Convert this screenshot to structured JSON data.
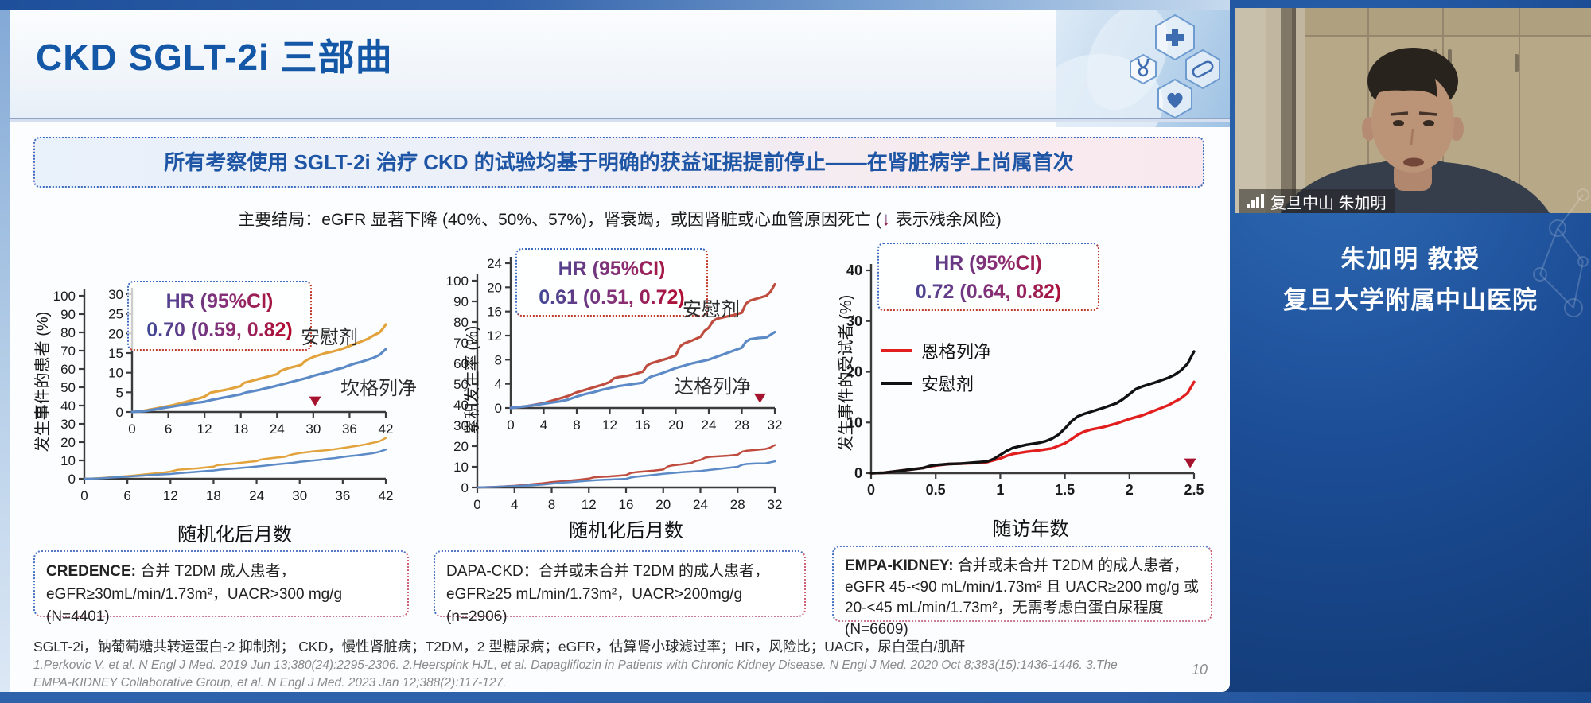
{
  "slide": {
    "title": "CKD SGLT-2i 三部曲",
    "banner": "所有考察使用 SGLT-2i 治疗 CKD 的试验均基于明确的获益证据提前停止——在肾脏病学上尚属首次",
    "subtitle_prefix": "主要结局：eGFR 显著下降 (40%、50%、57%)，肾衰竭，或因肾脏或心血管原因死亡 (",
    "subtitle_arrow": "↓",
    "subtitle_suffix": " 表示残余风险)",
    "footnote_abbrev": "SGLT-2i，钠葡萄糖共转运蛋白-2 抑制剂； CKD，慢性肾脏病；T2DM，2 型糖尿病；eGFR，估算肾小球滤过率；HR，风险比；UACR，尿白蛋白/肌酐",
    "references": "1.Perkovic V, et al. N Engl J Med. 2019 Jun 13;380(24):2295-2306. 2.Heerspink HJL, et al. Dapagliflozin in Patients with Chronic Kidney Disease. N Engl J Med. 2020 Oct 8;383(15):1436-1446. 3.The EMPA-KIDNEY Collaborative Group, et al. N Engl J Med. 2023 Jan 12;388(2):117-127.",
    "page_number": "10"
  },
  "trial_boxes": [
    {
      "title": "CREDENCE:",
      "text": " 合并 T2DM 成人患者，eGFR≥30mL/min/1.73m²，UACR>300 mg/g (N=4401)"
    },
    {
      "title": "DAPA-CKD：",
      "text": "合并或未合并 T2DM 的成人患者，eGFR≥25 mL/min/1.73m²，UACR>200mg/g (n=2906)"
    },
    {
      "title": "EMPA-KIDNEY:",
      "text": " 合并或未合并 T2DM 的成人患者，eGFR 45-<90 mL/min/1.73m² 且 UACR≥200 mg/g 或 20-<45 mL/min/1.73m²，无需考虑白蛋白尿程度 (N=6609)"
    }
  ],
  "speaker": {
    "video_label": "复旦中山 朱加明",
    "name_line": "朱加明 教授",
    "hospital_line": "复旦大学附属中山医院"
  },
  "chart_data": [
    {
      "type": "line",
      "trial": "CREDENCE",
      "xlabel": "随机化后月数",
      "ylabel": "发生事件的患者 (%)",
      "hr_label": "HR (95%CI)",
      "hr_value": "0.70 (0.59, 0.82)",
      "axes": [
        {
          "xlim": [
            0,
            42
          ],
          "ylim": [
            0,
            100
          ],
          "xticks": [
            0,
            6,
            12,
            18,
            24,
            30,
            36,
            42
          ],
          "yticks": [
            0,
            10,
            20,
            30,
            40,
            50,
            60,
            70,
            80,
            90,
            100
          ]
        },
        {
          "xlim": [
            0,
            42
          ],
          "ylim": [
            0,
            30
          ],
          "xticks": [
            0,
            6,
            12,
            18,
            24,
            30,
            36,
            42
          ],
          "yticks": [
            0,
            5,
            10,
            15,
            20,
            25,
            30
          ],
          "arrow": {
            "x": 30.3,
            "y1": 9.2,
            "y2": 1.5
          }
        }
      ],
      "series": [
        {
          "name": "安慰剂",
          "color": "#E2A33C",
          "points": [
            [
              0,
              0
            ],
            [
              1,
              0.1
            ],
            [
              2,
              0.3
            ],
            [
              3,
              0.6
            ],
            [
              4,
              0.9
            ],
            [
              5,
              1.2
            ],
            [
              6,
              1.5
            ],
            [
              7,
              1.8
            ],
            [
              8,
              2.2
            ],
            [
              9,
              2.6
            ],
            [
              10,
              3.0
            ],
            [
              11,
              3.4
            ],
            [
              12,
              3.9
            ],
            [
              13,
              4.9
            ],
            [
              14,
              5.2
            ],
            [
              15,
              5.5
            ],
            [
              16,
              5.8
            ],
            [
              17,
              6.2
            ],
            [
              18,
              6.6
            ],
            [
              18.5,
              7.4
            ],
            [
              19,
              7.6
            ],
            [
              20,
              8.0
            ],
            [
              21,
              8.4
            ],
            [
              22,
              8.8
            ],
            [
              23,
              9.2
            ],
            [
              24,
              9.6
            ],
            [
              24.5,
              10.4
            ],
            [
              25,
              10.7
            ],
            [
              26,
              11.2
            ],
            [
              27,
              11.6
            ],
            [
              28,
              12.0
            ],
            [
              28.5,
              12.8
            ],
            [
              29,
              13.3
            ],
            [
              30,
              14.0
            ],
            [
              31,
              14.5
            ],
            [
              32,
              15.0
            ],
            [
              33,
              15.3
            ],
            [
              34,
              15.7
            ],
            [
              35,
              16.2
            ],
            [
              36,
              16.8
            ],
            [
              37,
              17.4
            ],
            [
              38,
              18.0
            ],
            [
              39,
              18.6
            ],
            [
              40,
              19.5
            ],
            [
              41,
              20.3
            ],
            [
              41.5,
              21.2
            ],
            [
              42,
              22.3
            ]
          ]
        },
        {
          "name": "坎格列净",
          "color": "#5B8AC6",
          "points": [
            [
              0,
              0
            ],
            [
              2,
              0.2
            ],
            [
              4,
              0.7
            ],
            [
              6,
              1.2
            ],
            [
              8,
              1.7
            ],
            [
              10,
              2.2
            ],
            [
              12,
              2.6
            ],
            [
              13,
              3.0
            ],
            [
              14,
              3.3
            ],
            [
              15,
              3.6
            ],
            [
              16,
              3.9
            ],
            [
              17,
              4.2
            ],
            [
              18,
              4.5
            ],
            [
              19,
              5.0
            ],
            [
              20,
              5.3
            ],
            [
              21,
              5.6
            ],
            [
              22,
              6.0
            ],
            [
              23,
              6.3
            ],
            [
              24,
              6.7
            ],
            [
              25,
              7.1
            ],
            [
              26,
              7.5
            ],
            [
              27,
              7.9
            ],
            [
              28,
              8.3
            ],
            [
              29,
              8.7
            ],
            [
              30,
              9.2
            ],
            [
              31,
              9.6
            ],
            [
              32,
              10.0
            ],
            [
              33,
              10.4
            ],
            [
              34,
              10.9
            ],
            [
              35,
              11.3
            ],
            [
              36,
              11.9
            ],
            [
              37,
              12.4
            ],
            [
              38,
              12.8
            ],
            [
              39,
              13.3
            ],
            [
              40,
              13.8
            ],
            [
              41,
              14.6
            ],
            [
              42,
              16.0
            ]
          ]
        }
      ]
    },
    {
      "type": "line",
      "trial": "DAPA-CKD",
      "xlabel": "随机化后月数",
      "ylabel": "累积发生率 (%)",
      "hr_label": "HR (95%CI)",
      "hr_value": "0.61 (0.51, 0.72)",
      "axes": [
        {
          "xlim": [
            0,
            32
          ],
          "ylim": [
            0,
            100
          ],
          "xticks": [
            0,
            4,
            8,
            12,
            16,
            20,
            24,
            28,
            32
          ],
          "yticks": [
            0,
            10,
            20,
            30,
            40,
            50,
            60,
            70,
            80,
            90,
            100
          ]
        },
        {
          "xlim": [
            0,
            32
          ],
          "ylim": [
            0,
            24
          ],
          "xticks": [
            0,
            4,
            8,
            12,
            16,
            20,
            24,
            28,
            32
          ],
          "yticks": [
            0,
            4,
            8,
            12,
            16,
            20,
            24
          ],
          "arrow": {
            "x": 30.2,
            "y1": 11.4,
            "y2": 0.8
          }
        }
      ],
      "series": [
        {
          "name": "安慰剂",
          "color": "#BF4D3F",
          "points": [
            [
              0,
              0
            ],
            [
              2,
              0.3
            ],
            [
              4,
              0.8
            ],
            [
              5,
              1.2
            ],
            [
              6,
              1.6
            ],
            [
              7,
              2.0
            ],
            [
              8,
              2.6
            ],
            [
              9,
              3.0
            ],
            [
              10,
              3.4
            ],
            [
              11,
              3.8
            ],
            [
              12,
              4.3
            ],
            [
              12.5,
              4.9
            ],
            [
              13,
              5.1
            ],
            [
              14,
              5.3
            ],
            [
              15,
              5.6
            ],
            [
              16,
              6.0
            ],
            [
              16.5,
              7.0
            ],
            [
              17,
              7.4
            ],
            [
              18,
              7.8
            ],
            [
              19,
              8.2
            ],
            [
              20,
              8.7
            ],
            [
              20.5,
              10.2
            ],
            [
              21,
              10.7
            ],
            [
              22,
              11.2
            ],
            [
              23,
              11.8
            ],
            [
              23.5,
              12.8
            ],
            [
              24,
              13.3
            ],
            [
              24.5,
              14.4
            ],
            [
              25,
              14.8
            ],
            [
              26,
              15.1
            ],
            [
              27,
              15.4
            ],
            [
              28,
              15.8
            ],
            [
              28.5,
              17.3
            ],
            [
              29,
              17.8
            ],
            [
              30,
              18.2
            ],
            [
              31,
              18.6
            ],
            [
              31.5,
              19.3
            ],
            [
              32,
              20.5
            ]
          ]
        },
        {
          "name": "达格列净",
          "color": "#5B8AC6",
          "points": [
            [
              0,
              0
            ],
            [
              2,
              0.3
            ],
            [
              4,
              0.7
            ],
            [
              6,
              1.1
            ],
            [
              7,
              1.4
            ],
            [
              8,
              1.9
            ],
            [
              9,
              2.3
            ],
            [
              10,
              2.6
            ],
            [
              11,
              3.0
            ],
            [
              12,
              3.3
            ],
            [
              13,
              3.6
            ],
            [
              14,
              3.8
            ],
            [
              15,
              4.0
            ],
            [
              16,
              4.2
            ],
            [
              16.5,
              4.8
            ],
            [
              17,
              5.2
            ],
            [
              18,
              5.6
            ],
            [
              19,
              6.1
            ],
            [
              20,
              6.6
            ],
            [
              21,
              7.0
            ],
            [
              22,
              7.4
            ],
            [
              23,
              7.7
            ],
            [
              24,
              8.0
            ],
            [
              25,
              8.5
            ],
            [
              26,
              9.0
            ],
            [
              27,
              9.5
            ],
            [
              28,
              10.0
            ],
            [
              28.5,
              11.0
            ],
            [
              29,
              11.4
            ],
            [
              30,
              11.6
            ],
            [
              31,
              11.7
            ],
            [
              32,
              12.6
            ]
          ]
        }
      ]
    },
    {
      "type": "line",
      "trial": "EMPA-KIDNEY",
      "xlabel": "随访年数",
      "ylabel": "发生事件的受试者 (%)",
      "hr_label": "HR (95%CI)",
      "hr_value": "0.72 (0.64, 0.82)",
      "axes": [
        {
          "xlim": [
            0,
            2.5
          ],
          "ylim": [
            0,
            40
          ],
          "xticks": [
            0,
            0.5,
            1,
            1.5,
            2,
            2.5
          ],
          "yticks": [
            0,
            10,
            20,
            30,
            40
          ],
          "arrow": {
            "x": 2.47,
            "y1": 16.5,
            "y2": 1.0
          }
        }
      ],
      "series": [
        {
          "name": "恩格列净",
          "color": "#E21F1F",
          "points": [
            [
              0,
              0
            ],
            [
              0.1,
              0.1
            ],
            [
              0.2,
              0.4
            ],
            [
              0.3,
              0.7
            ],
            [
              0.4,
              1.0
            ],
            [
              0.45,
              1.3
            ],
            [
              0.5,
              1.5
            ],
            [
              0.6,
              1.8
            ],
            [
              0.7,
              1.9
            ],
            [
              0.8,
              2.0
            ],
            [
              0.9,
              2.2
            ],
            [
              1.0,
              2.9
            ],
            [
              1.05,
              3.4
            ],
            [
              1.1,
              3.8
            ],
            [
              1.2,
              4.2
            ],
            [
              1.3,
              4.5
            ],
            [
              1.4,
              4.9
            ],
            [
              1.5,
              5.9
            ],
            [
              1.55,
              6.7
            ],
            [
              1.6,
              7.6
            ],
            [
              1.65,
              8.2
            ],
            [
              1.7,
              8.6
            ],
            [
              1.8,
              9.1
            ],
            [
              1.9,
              9.8
            ],
            [
              2.0,
              10.7
            ],
            [
              2.1,
              11.4
            ],
            [
              2.2,
              12.4
            ],
            [
              2.3,
              13.4
            ],
            [
              2.4,
              14.8
            ],
            [
              2.45,
              15.8
            ],
            [
              2.5,
              18.0
            ]
          ]
        },
        {
          "name": "安慰剂",
          "color": "#111111",
          "points": [
            [
              0,
              0
            ],
            [
              0.1,
              0.1
            ],
            [
              0.2,
              0.4
            ],
            [
              0.3,
              0.7
            ],
            [
              0.4,
              1.0
            ],
            [
              0.45,
              1.4
            ],
            [
              0.5,
              1.6
            ],
            [
              0.6,
              1.8
            ],
            [
              0.7,
              1.9
            ],
            [
              0.8,
              2.1
            ],
            [
              0.9,
              2.3
            ],
            [
              0.95,
              2.8
            ],
            [
              1.0,
              3.6
            ],
            [
              1.05,
              4.4
            ],
            [
              1.1,
              5.0
            ],
            [
              1.2,
              5.6
            ],
            [
              1.3,
              6.0
            ],
            [
              1.35,
              6.3
            ],
            [
              1.4,
              6.8
            ],
            [
              1.45,
              7.6
            ],
            [
              1.5,
              8.8
            ],
            [
              1.55,
              10.2
            ],
            [
              1.6,
              11.2
            ],
            [
              1.65,
              11.7
            ],
            [
              1.7,
              12.1
            ],
            [
              1.8,
              12.9
            ],
            [
              1.9,
              13.8
            ],
            [
              1.95,
              14.6
            ],
            [
              2.0,
              15.6
            ],
            [
              2.05,
              16.6
            ],
            [
              2.1,
              17.1
            ],
            [
              2.2,
              17.9
            ],
            [
              2.3,
              18.8
            ],
            [
              2.35,
              19.4
            ],
            [
              2.4,
              20.3
            ],
            [
              2.45,
              21.6
            ],
            [
              2.5,
              24.0
            ]
          ]
        }
      ]
    }
  ]
}
